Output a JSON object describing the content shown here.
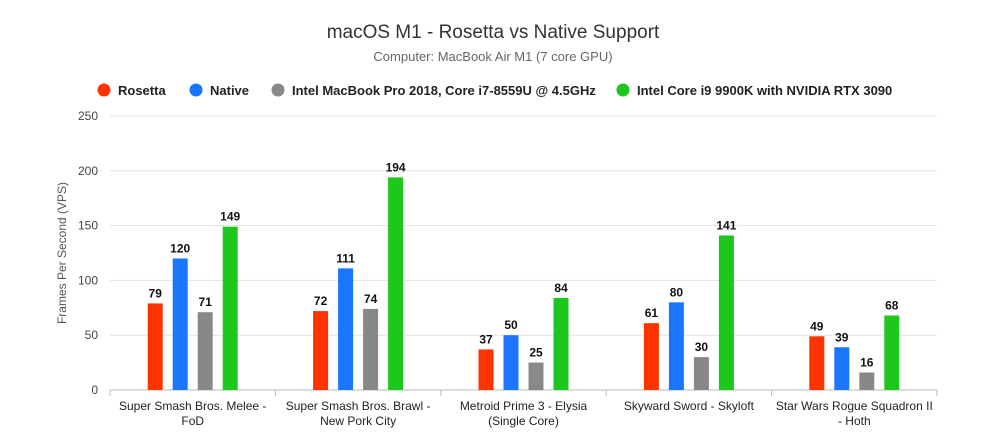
{
  "chart_data": {
    "type": "bar",
    "title": "macOS M1 - Rosetta vs Native Support",
    "subtitle": "Computer: MacBook Air M1 (7 core GPU)",
    "ylabel": "Frames Per Second (VPS)",
    "ylim": [
      0,
      250
    ],
    "yticks": [
      0,
      50,
      100,
      150,
      200,
      250
    ],
    "grid": true,
    "legend_position": "top",
    "categories": [
      [
        "Super Smash Bros. Melee -",
        "FoD"
      ],
      [
        "Super Smash Bros. Brawl -",
        "New Pork City"
      ],
      [
        "Metroid Prime 3 - Elysia",
        "(Single Core)"
      ],
      [
        "Skyward Sword - Skyloft"
      ],
      [
        "Star Wars Rogue Squadron II",
        "- Hoth"
      ]
    ],
    "series": [
      {
        "name": "Rosetta",
        "color": "#ff3300",
        "values": [
          79,
          72,
          37,
          61,
          49
        ]
      },
      {
        "name": "Native",
        "color": "#1a75ff",
        "values": [
          120,
          111,
          50,
          80,
          39
        ]
      },
      {
        "name": "Intel MacBook Pro 2018, Core i7-8559U @ 4.5GHz",
        "color": "#888888",
        "values": [
          71,
          74,
          25,
          30,
          16
        ]
      },
      {
        "name": "Intel Core i9 9900K with NVIDIA RTX 3090",
        "color": "#1ec71e",
        "values": [
          149,
          194,
          84,
          141,
          68
        ]
      }
    ]
  }
}
